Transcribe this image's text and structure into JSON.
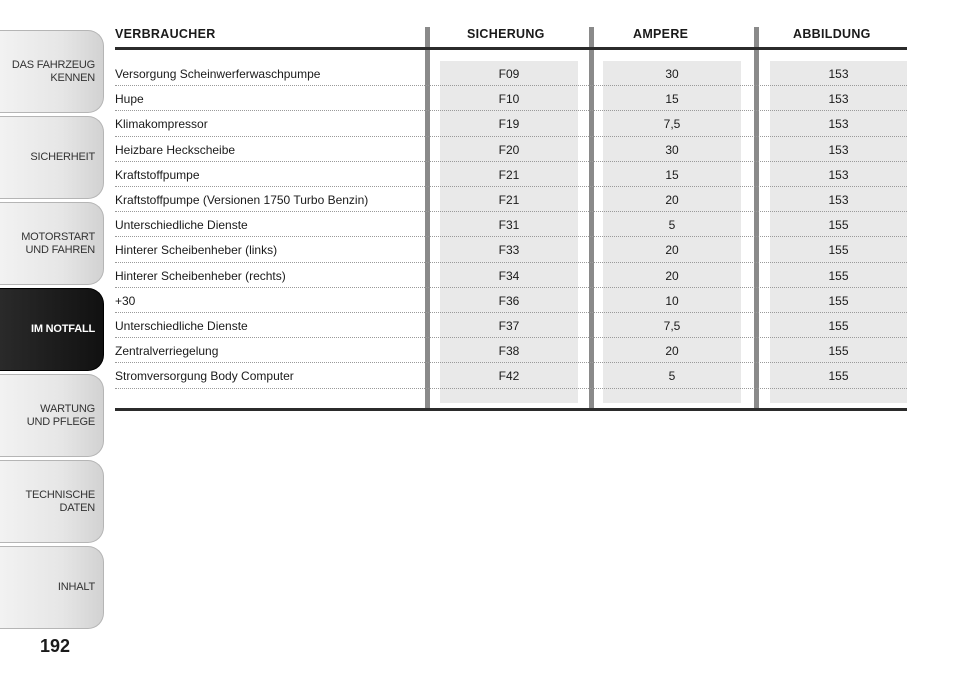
{
  "tabs": [
    {
      "label": "DAS FAHRZEUG\nKENNEN",
      "active": false
    },
    {
      "label": "SICHERHEIT",
      "active": false
    },
    {
      "label": "MOTORSTART\nUND FAHREN",
      "active": false
    },
    {
      "label": "IM NOTFALL",
      "active": true
    },
    {
      "label": "WARTUNG\nUND PFLEGE",
      "active": false
    },
    {
      "label": "TECHNISCHE\nDATEN",
      "active": false
    },
    {
      "label": "INHALT",
      "active": false
    }
  ],
  "page_number": "192",
  "table": {
    "headers": {
      "consumer": "VERBRAUCHER",
      "fuse": "SICHERUNG",
      "ampere": "AMPERE",
      "figure": "ABBILDUNG"
    },
    "rows": [
      {
        "consumer": "Versorgung Scheinwerferwaschpumpe",
        "fuse": "F09",
        "ampere": "30",
        "figure": "153"
      },
      {
        "consumer": "Hupe",
        "fuse": "F10",
        "ampere": "15",
        "figure": "153"
      },
      {
        "consumer": "Klimakompressor",
        "fuse": "F19",
        "ampere": "7,5",
        "figure": "153"
      },
      {
        "consumer": "Heizbare Heckscheibe",
        "fuse": "F20",
        "ampere": "30",
        "figure": "153"
      },
      {
        "consumer": "Kraftstoffpumpe",
        "fuse": "F21",
        "ampere": "15",
        "figure": "153"
      },
      {
        "consumer": "Kraftstoffpumpe (Versionen 1750 Turbo Benzin)",
        "fuse": "F21",
        "ampere": "20",
        "figure": "153"
      },
      {
        "consumer": "Unterschiedliche Dienste",
        "fuse": "F31",
        "ampere": "5",
        "figure": "155"
      },
      {
        "consumer": "Hinterer Scheibenheber (links)",
        "fuse": "F33",
        "ampere": "20",
        "figure": "155"
      },
      {
        "consumer": "Hinterer Scheibenheber (rechts)",
        "fuse": "F34",
        "ampere": "20",
        "figure": "155"
      },
      {
        "consumer": "+30",
        "fuse": "F36",
        "ampere": "10",
        "figure": "155"
      },
      {
        "consumer": "Unterschiedliche Dienste",
        "fuse": "F37",
        "ampere": "7,5",
        "figure": "155"
      },
      {
        "consumer": "Zentralverriegelung",
        "fuse": "F38",
        "ampere": "20",
        "figure": "155"
      },
      {
        "consumer": "Stromversorgung Body Computer",
        "fuse": "F42",
        "ampere": "5",
        "figure": "155"
      }
    ]
  }
}
